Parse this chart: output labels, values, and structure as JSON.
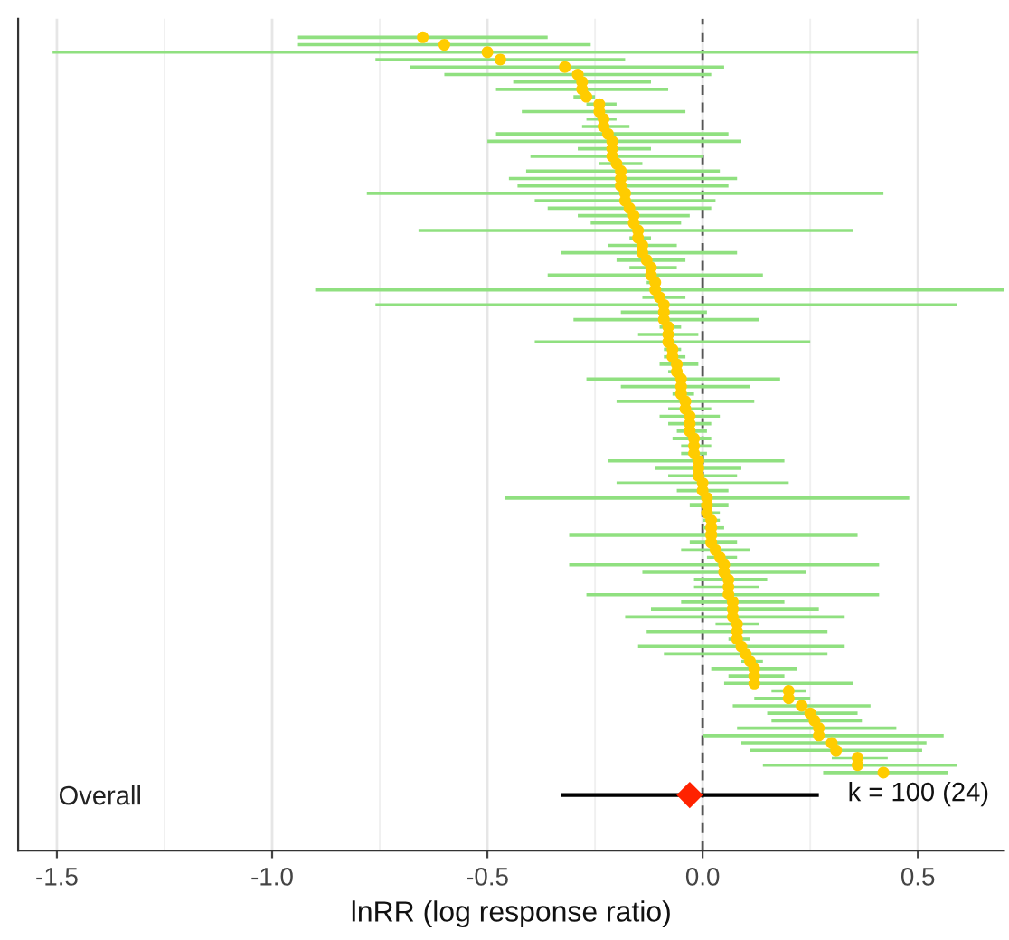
{
  "chart_data": {
    "type": "scatter",
    "orientation": "horizontal",
    "xlabel": "lnRR (log response ratio)",
    "categories": [
      null,
      null,
      null,
      null,
      null,
      null,
      null,
      null,
      null,
      null,
      null,
      null,
      null,
      null,
      null,
      null,
      null,
      null,
      null,
      null,
      null,
      null,
      null,
      null,
      null,
      null,
      null,
      null,
      null,
      null,
      null,
      null,
      null,
      null,
      null,
      null,
      null,
      null,
      null,
      null,
      null,
      null,
      null,
      null,
      null,
      null,
      null,
      null,
      null,
      null,
      null,
      null,
      null,
      null,
      null,
      null,
      null,
      null,
      null,
      null,
      null,
      null,
      null,
      null,
      null,
      null,
      null,
      null,
      null,
      null,
      null,
      null,
      null,
      null,
      null,
      null,
      null,
      null,
      null,
      null,
      null,
      null,
      null,
      null,
      null,
      null,
      null,
      null,
      null,
      null,
      null,
      null,
      null,
      null,
      null,
      null,
      null,
      null,
      null,
      null,
      null,
      null,
      null,
      null,
      "Overall",
      null,
      null,
      null,
      null,
      null,
      null,
      null
    ],
    "series": [
      {
        "color": "#ffcc00",
        "marker": "circle",
        "values": [
          null,
          null,
          -0.65,
          -0.6,
          -0.5,
          -0.47,
          -0.32,
          -0.29,
          -0.28,
          -0.28,
          -0.27,
          -0.24,
          -0.24,
          -0.23,
          -0.23,
          -0.22,
          -0.21,
          -0.21,
          -0.21,
          -0.2,
          -0.19,
          -0.19,
          -0.19,
          -0.18,
          -0.18,
          -0.17,
          -0.16,
          -0.16,
          -0.15,
          -0.15,
          -0.14,
          -0.14,
          -0.13,
          -0.12,
          -0.12,
          -0.11,
          -0.11,
          -0.1,
          -0.09,
          -0.09,
          -0.09,
          -0.08,
          -0.08,
          -0.08,
          -0.07,
          -0.07,
          -0.06,
          -0.06,
          -0.05,
          -0.05,
          -0.05,
          -0.04,
          -0.04,
          -0.03,
          -0.03,
          -0.03,
          -0.02,
          -0.02,
          -0.02,
          -0.01,
          -0.01,
          -0.01,
          0.0,
          0.0,
          0.01,
          0.01,
          0.01,
          0.02,
          0.02,
          0.02,
          0.02,
          0.03,
          0.04,
          0.05,
          0.05,
          0.06,
          0.06,
          0.06,
          0.07,
          0.07,
          0.07,
          0.08,
          0.08,
          0.08,
          0.09,
          0.1,
          0.11,
          0.12,
          0.12,
          0.12,
          0.2,
          0.2,
          0.23,
          0.25,
          0.26,
          0.27,
          0.27,
          0.3,
          0.31,
          0.36,
          0.36,
          0.42,
          null,
          null,
          null,
          null,
          null,
          null,
          null,
          null,
          null,
          null
        ],
        "errors": [
          null,
          null,
          [
            -0.94,
            -0.36
          ],
          [
            -0.94,
            -0.26
          ],
          [
            -1.51,
            0.5
          ],
          [
            -0.76,
            -0.18
          ],
          [
            -0.68,
            0.05
          ],
          [
            -0.6,
            0.02
          ],
          [
            -0.44,
            -0.12
          ],
          [
            -0.48,
            -0.08
          ],
          [
            -0.3,
            -0.25
          ],
          [
            -0.27,
            -0.2
          ],
          [
            -0.42,
            -0.04
          ],
          [
            -0.27,
            -0.2
          ],
          [
            -0.28,
            -0.17
          ],
          [
            -0.48,
            0.06
          ],
          [
            -0.5,
            0.09
          ],
          [
            -0.29,
            -0.12
          ],
          [
            -0.4,
            0.0
          ],
          [
            -0.24,
            -0.14
          ],
          [
            -0.41,
            0.04
          ],
          [
            -0.45,
            0.08
          ],
          [
            -0.43,
            0.06
          ],
          [
            -0.78,
            0.42
          ],
          [
            -0.39,
            0.03
          ],
          [
            -0.36,
            0.02
          ],
          [
            -0.29,
            -0.03
          ],
          [
            -0.26,
            -0.05
          ],
          [
            -0.66,
            0.35
          ],
          [
            -0.17,
            -0.12
          ],
          [
            -0.22,
            -0.06
          ],
          [
            -0.33,
            0.08
          ],
          [
            -0.2,
            -0.04
          ],
          [
            -0.17,
            -0.06
          ],
          [
            -0.36,
            0.14
          ],
          [
            -0.13,
            -0.1
          ],
          [
            -0.9,
            0.7
          ],
          [
            -0.14,
            -0.04
          ],
          [
            -0.76,
            0.59
          ],
          [
            -0.19,
            0.01
          ],
          [
            -0.3,
            0.13
          ],
          [
            -0.1,
            -0.05
          ],
          [
            -0.15,
            -0.01
          ],
          [
            -0.39,
            0.25
          ],
          [
            -0.09,
            -0.05
          ],
          [
            -0.09,
            -0.04
          ],
          [
            -0.1,
            -0.01
          ],
          [
            -0.08,
            -0.05
          ],
          [
            -0.27,
            0.18
          ],
          [
            -0.19,
            0.11
          ],
          [
            -0.07,
            -0.02
          ],
          [
            -0.2,
            0.12
          ],
          [
            -0.08,
            0.02
          ],
          [
            -0.1,
            0.04
          ],
          [
            -0.08,
            0.02
          ],
          [
            -0.06,
            0.01
          ],
          [
            -0.07,
            0.02
          ],
          [
            -0.05,
            0.02
          ],
          [
            -0.05,
            0.01
          ],
          [
            -0.22,
            0.19
          ],
          [
            -0.11,
            0.09
          ],
          [
            -0.08,
            0.08
          ],
          [
            -0.2,
            0.2
          ],
          [
            -0.06,
            0.06
          ],
          [
            -0.46,
            0.48
          ],
          [
            -0.03,
            0.06
          ],
          [
            0.0,
            0.04
          ],
          [
            0.0,
            0.04
          ],
          [
            0.0,
            0.05
          ],
          [
            -0.31,
            0.36
          ],
          [
            -0.03,
            0.08
          ],
          [
            -0.05,
            0.11
          ],
          [
            0.01,
            0.08
          ],
          [
            -0.31,
            0.41
          ],
          [
            -0.14,
            0.24
          ],
          [
            -0.02,
            0.15
          ],
          [
            -0.02,
            0.13
          ],
          [
            -0.27,
            0.41
          ],
          [
            -0.05,
            0.19
          ],
          [
            -0.12,
            0.27
          ],
          [
            -0.18,
            0.33
          ],
          [
            0.03,
            0.13
          ],
          [
            -0.13,
            0.29
          ],
          [
            0.06,
            0.11
          ],
          [
            -0.15,
            0.33
          ],
          [
            -0.09,
            0.29
          ],
          [
            0.09,
            0.14
          ],
          [
            0.02,
            0.22
          ],
          [
            0.06,
            0.19
          ],
          [
            0.05,
            0.35
          ],
          [
            0.16,
            0.24
          ],
          [
            0.12,
            0.25
          ],
          [
            0.07,
            0.39
          ],
          [
            0.15,
            0.36
          ],
          [
            0.16,
            0.37
          ],
          [
            0.08,
            0.45
          ],
          [
            0.0,
            0.56
          ],
          [
            0.09,
            0.52
          ],
          [
            0.11,
            0.51
          ],
          [
            0.3,
            0.43
          ],
          [
            0.14,
            0.59
          ],
          [
            0.28,
            0.57
          ],
          null,
          null,
          null,
          null,
          null,
          null,
          null,
          null,
          null,
          null
        ]
      },
      {
        "color": "#ff2200",
        "marker": "diamond",
        "values": [
          null,
          null,
          null,
          null,
          null,
          null,
          null,
          null,
          null,
          null,
          null,
          null,
          null,
          null,
          null,
          null,
          null,
          null,
          null,
          null,
          null,
          null,
          null,
          null,
          null,
          null,
          null,
          null,
          null,
          null,
          null,
          null,
          null,
          null,
          null,
          null,
          null,
          null,
          null,
          null,
          null,
          null,
          null,
          null,
          null,
          null,
          null,
          null,
          null,
          null,
          null,
          null,
          null,
          null,
          null,
          null,
          null,
          null,
          null,
          null,
          null,
          null,
          null,
          null,
          null,
          null,
          null,
          null,
          null,
          null,
          null,
          null,
          null,
          null,
          null,
          null,
          null,
          null,
          null,
          null,
          null,
          null,
          null,
          null,
          null,
          null,
          null,
          null,
          null,
          null,
          null,
          null,
          null,
          null,
          null,
          null,
          null,
          null,
          null,
          null,
          null,
          null,
          null,
          null,
          -0.03,
          null,
          null,
          null,
          null,
          null,
          null,
          null
        ],
        "errors": [
          null,
          null,
          null,
          null,
          null,
          null,
          null,
          null,
          null,
          null,
          null,
          null,
          null,
          null,
          null,
          null,
          null,
          null,
          null,
          null,
          null,
          null,
          null,
          null,
          null,
          null,
          null,
          null,
          null,
          null,
          null,
          null,
          null,
          null,
          null,
          null,
          null,
          null,
          null,
          null,
          null,
          null,
          null,
          null,
          null,
          null,
          null,
          null,
          null,
          null,
          null,
          null,
          null,
          null,
          null,
          null,
          null,
          null,
          null,
          null,
          null,
          null,
          null,
          null,
          null,
          null,
          null,
          null,
          null,
          null,
          null,
          null,
          null,
          null,
          null,
          null,
          null,
          null,
          null,
          null,
          null,
          null,
          null,
          null,
          null,
          null,
          null,
          null,
          null,
          null,
          null,
          null,
          null,
          null,
          null,
          null,
          null,
          null,
          null,
          null,
          null,
          null,
          null,
          null,
          [
            -0.33,
            0.27
          ],
          null,
          null,
          null,
          null,
          null,
          null,
          null
        ]
      }
    ],
    "xlim": [
      -1.59,
      0.7
    ],
    "xticks": [
      {
        "value": -1.5,
        "label": "-1.5"
      },
      {
        "value": -1.0,
        "label": "-1.0"
      },
      {
        "value": -0.5,
        "label": "-0.5"
      },
      {
        "value": 0.0,
        "label": "0.0"
      },
      {
        "value": 0.5,
        "label": "0.5"
      }
    ],
    "ref_lines": [
      {
        "axis": "x",
        "value": 0,
        "color": "#555555",
        "line_style": "dashed"
      }
    ],
    "annotations": [
      "k = 100 (24)"
    ],
    "grid": "x"
  }
}
